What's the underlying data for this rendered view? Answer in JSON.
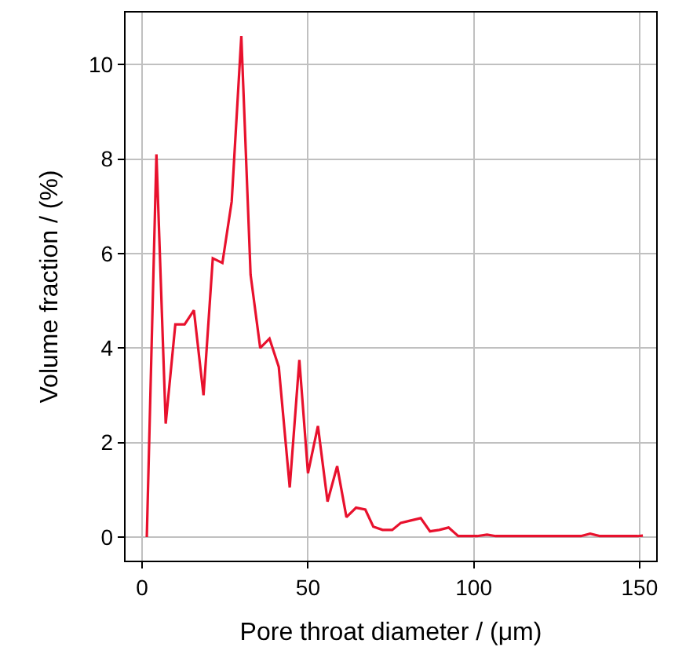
{
  "chart_data": {
    "type": "line",
    "xlabel": "Pore throat diameter / (μm)",
    "ylabel": "Volume fraction / (%)",
    "x": [
      1.4,
      4.3,
      7.1,
      10,
      12.8,
      15.6,
      18.5,
      21.3,
      24.2,
      27,
      29.9,
      32.7,
      35.6,
      38.4,
      41.2,
      44.5,
      47.4,
      50,
      53,
      55.9,
      58.8,
      61.6,
      64.5,
      67.3,
      69.7,
      72.5,
      75.4,
      78,
      81,
      84,
      86.8,
      89.6,
      92.4,
      95.3,
      98.1,
      101,
      104,
      106.6,
      109.5,
      112.3,
      115.2,
      118,
      120.9,
      123.7,
      126.6,
      129.4,
      132.3,
      135.1,
      138,
      140.8,
      143.7,
      146.5,
      149.4,
      151
    ],
    "series": [
      {
        "color": "#e8112d",
        "values": [
          0,
          8.1,
          2.4,
          4.5,
          4.5,
          4.8,
          3.0,
          5.9,
          5.8,
          7.1,
          10.6,
          5.55,
          4.0,
          4.2,
          3.6,
          1.05,
          3.75,
          1.35,
          2.35,
          0.75,
          1.5,
          0.42,
          0.62,
          0.58,
          0.22,
          0.15,
          0.15,
          0.3,
          0.35,
          0.4,
          0.12,
          0.15,
          0.2,
          0.02,
          0.02,
          0.02,
          0.05,
          0.02,
          0.02,
          0.02,
          0.02,
          0.02,
          0.02,
          0.02,
          0.02,
          0.02,
          0.02,
          0.07,
          0.02,
          0.02,
          0.02,
          0.02,
          0.02,
          0.03
        ]
      }
    ],
    "xlim": [
      -5,
      155
    ],
    "ylim": [
      -0.5,
      11.1
    ],
    "xticks": [
      0,
      50,
      100,
      150
    ],
    "yticks": [
      0,
      2,
      4,
      6,
      8,
      10
    ],
    "grid": true,
    "marker": "none",
    "line_style": "solid"
  }
}
